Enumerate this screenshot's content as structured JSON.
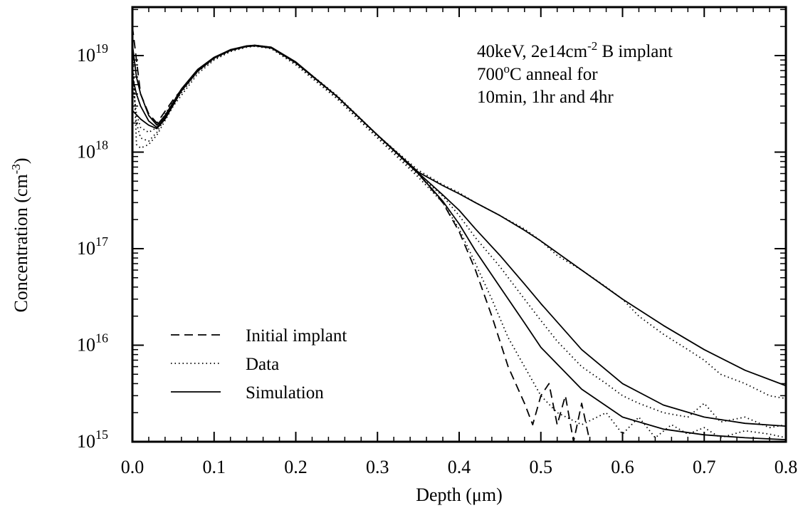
{
  "chart_data": {
    "type": "line",
    "title": "",
    "xlabel": "Depth (μm)",
    "ylabel": "Concentration (cm-3)",
    "xlim": [
      0.0,
      0.8
    ],
    "ylim": [
      1000000000000000.0,
      3e+19
    ],
    "yscale": "log",
    "grid": false,
    "legend_position": "bottom-left",
    "x_ticks": [
      "0.0",
      "0.1",
      "0.2",
      "0.3",
      "0.4",
      "0.5",
      "0.6",
      "0.7",
      "0.8"
    ],
    "y_ticks": [
      {
        "base": "10",
        "exp": "15",
        "value": 1000000000000000.0
      },
      {
        "base": "10",
        "exp": "16",
        "value": 1e+16
      },
      {
        "base": "10",
        "exp": "17",
        "value": 1e+17
      },
      {
        "base": "10",
        "exp": "18",
        "value": 1e+18
      },
      {
        "base": "10",
        "exp": "19",
        "value": 1e+19
      }
    ],
    "annotation": [
      {
        "parts": [
          {
            "t": "40keV, 2e14cm"
          },
          {
            "t": "-2",
            "sup": true
          },
          {
            "t": " B implant"
          }
        ]
      },
      {
        "parts": [
          {
            "t": "700"
          },
          {
            "t": "o",
            "sup": true
          },
          {
            "t": "C anneal for"
          }
        ]
      },
      {
        "parts": [
          {
            "t": "10min, 1hr and 4hr"
          }
        ]
      }
    ],
    "legend": [
      {
        "label": "Initial implant",
        "style": "dashed"
      },
      {
        "label": "Data",
        "style": "dotted"
      },
      {
        "label": "Simulation",
        "style": "solid"
      }
    ],
    "series": [
      {
        "role": "Initial implant",
        "style": "dashed",
        "x": [
          0.0,
          0.01,
          0.02,
          0.03,
          0.05,
          0.08,
          0.1,
          0.12,
          0.14,
          0.15,
          0.17,
          0.2,
          0.25,
          0.3,
          0.35,
          0.38,
          0.4,
          0.42,
          0.44,
          0.46,
          0.48,
          0.49,
          0.5,
          0.51,
          0.52,
          0.53,
          0.54,
          0.55,
          0.56
        ],
        "y": [
          2e+19,
          4e+18,
          2.5e+18,
          2e+18,
          3.5e+18,
          7e+18,
          9.5e+18,
          1.15e+19,
          1.25e+19,
          1.27e+19,
          1.2e+19,
          8.5e+18,
          3.8e+18,
          1.5e+18,
          6e+17,
          3e+17,
          1.5e+17,
          6e+16,
          2e+16,
          6000000000000000.0,
          2500000000000000.0,
          1500000000000000.0,
          3000000000000000.0,
          4000000000000000.0,
          1500000000000000.0,
          3000000000000000.0,
          1000000000000000.0,
          2500000000000000.0,
          1000000000000000.0
        ]
      },
      {
        "role": "Data (10min)",
        "style": "dotted",
        "x": [
          0.0,
          0.005,
          0.01,
          0.02,
          0.03,
          0.05,
          0.08,
          0.1,
          0.12,
          0.14,
          0.15,
          0.17,
          0.2,
          0.25,
          0.3,
          0.35,
          0.38,
          0.4,
          0.42,
          0.44,
          0.46,
          0.48,
          0.5,
          0.52,
          0.55,
          0.58,
          0.6,
          0.62,
          0.64,
          0.66,
          0.68,
          0.7,
          0.72,
          0.75,
          0.78,
          0.8
        ],
        "y": [
          1.5e+19,
          1.2e+18,
          1.1e+18,
          1.2e+18,
          1.5e+18,
          3e+18,
          6.5e+18,
          9e+18,
          1.1e+19,
          1.22e+19,
          1.25e+19,
          1.18e+19,
          8e+18,
          3.6e+18,
          1.4e+18,
          5.5e+17,
          3e+17,
          1.6e+17,
          7e+16,
          3e+16,
          1.2e+16,
          6000000000000000.0,
          3000000000000000.0,
          2000000000000000.0,
          1500000000000000.0,
          2000000000000000.0,
          1200000000000000.0,
          1800000000000000.0,
          1100000000000000.0,
          1500000000000000.0,
          1200000000000000.0,
          1400000000000000.0,
          1100000000000000.0,
          1300000000000000.0,
          1200000000000000.0,
          1100000000000000.0
        ]
      },
      {
        "role": "Data (1hr)",
        "style": "dotted",
        "x": [
          0.0,
          0.005,
          0.01,
          0.02,
          0.03,
          0.05,
          0.08,
          0.1,
          0.12,
          0.14,
          0.15,
          0.17,
          0.2,
          0.25,
          0.3,
          0.35,
          0.38,
          0.4,
          0.42,
          0.45,
          0.48,
          0.5,
          0.52,
          0.55,
          0.58,
          0.6,
          0.62,
          0.65,
          0.68,
          0.7,
          0.72,
          0.75,
          0.78,
          0.8
        ],
        "y": [
          8e+18,
          2e+18,
          1.4e+18,
          1.3e+18,
          1.6e+18,
          3.2e+18,
          6.8e+18,
          9.2e+18,
          1.12e+19,
          1.24e+19,
          1.26e+19,
          1.2e+19,
          8.2e+18,
          3.7e+18,
          1.45e+18,
          5.8e+17,
          3.5e+17,
          2.2e+17,
          1.3e+17,
          6.5e+16,
          3e+16,
          1.8e+16,
          1.1e+16,
          6000000000000000.0,
          4000000000000000.0,
          3000000000000000.0,
          2500000000000000.0,
          2000000000000000.0,
          1800000000000000.0,
          2500000000000000.0,
          1600000000000000.0,
          1800000000000000.0,
          1400000000000000.0,
          1500000000000000.0
        ]
      },
      {
        "role": "Data (4hr)",
        "style": "dotted",
        "x": [
          0.0,
          0.005,
          0.01,
          0.02,
          0.03,
          0.05,
          0.08,
          0.1,
          0.12,
          0.14,
          0.15,
          0.17,
          0.2,
          0.25,
          0.3,
          0.35,
          0.38,
          0.4,
          0.42,
          0.45,
          0.48,
          0.5,
          0.52,
          0.55,
          0.58,
          0.6,
          0.62,
          0.65,
          0.68,
          0.7,
          0.72,
          0.75,
          0.78,
          0.8
        ],
        "y": [
          5e+18,
          2.5e+18,
          1.8e+18,
          1.6e+18,
          1.8e+18,
          3.4e+18,
          7e+18,
          9.4e+18,
          1.14e+19,
          1.26e+19,
          1.28e+19,
          1.22e+19,
          8.5e+18,
          3.9e+18,
          1.5e+18,
          6.5e+17,
          4.6e+17,
          3.8e+17,
          3e+17,
          2.2e+17,
          1.6e+17,
          1.2e+17,
          8.5e+16,
          6e+16,
          4e+16,
          3e+16,
          2e+16,
          1.3e+16,
          9000000000000000.0,
          7000000000000000.0,
          5000000000000000.0,
          4000000000000000.0,
          3000000000000000.0,
          2800000000000000.0
        ]
      },
      {
        "role": "Simulation (10min)",
        "style": "solid",
        "x": [
          0.0,
          0.005,
          0.01,
          0.02,
          0.03,
          0.04,
          0.06,
          0.08,
          0.1,
          0.12,
          0.14,
          0.15,
          0.17,
          0.2,
          0.25,
          0.3,
          0.35,
          0.38,
          0.4,
          0.42,
          0.45,
          0.48,
          0.5,
          0.55,
          0.6,
          0.65,
          0.7,
          0.75,
          0.8
        ],
        "y": [
          1.3e+19,
          6e+18,
          4e+18,
          2.4e+18,
          1.9e+18,
          2.4e+18,
          4.5e+18,
          7.2e+18,
          9.6e+18,
          1.15e+19,
          1.26e+19,
          1.28e+19,
          1.22e+19,
          8.6e+18,
          3.8e+18,
          1.5e+18,
          6e+17,
          3.1e+17,
          1.8e+17,
          9.5e+16,
          4e+16,
          1.7e+16,
          9500000000000000.0,
          3500000000000000.0,
          1800000000000000.0,
          1350000000000000.0,
          1180000000000000.0,
          1100000000000000.0,
          1050000000000000.0
        ]
      },
      {
        "role": "Simulation (1hr)",
        "style": "solid",
        "x": [
          0.0,
          0.005,
          0.01,
          0.02,
          0.03,
          0.04,
          0.06,
          0.08,
          0.1,
          0.12,
          0.14,
          0.15,
          0.17,
          0.2,
          0.25,
          0.3,
          0.35,
          0.38,
          0.4,
          0.42,
          0.45,
          0.48,
          0.5,
          0.55,
          0.6,
          0.65,
          0.7,
          0.75,
          0.8
        ],
        "y": [
          6e+18,
          4e+18,
          3e+18,
          2.1e+18,
          1.8e+18,
          2.3e+18,
          4.4e+18,
          7e+18,
          9.5e+18,
          1.14e+19,
          1.25e+19,
          1.27e+19,
          1.21e+19,
          8.5e+18,
          3.8e+18,
          1.5e+18,
          6.1e+17,
          3.6e+17,
          2.5e+17,
          1.6e+17,
          8.5e+16,
          4.3e+16,
          2.7e+16,
          9000000000000000.0,
          4000000000000000.0,
          2400000000000000.0,
          1800000000000000.0,
          1550000000000000.0,
          1450000000000000.0
        ]
      },
      {
        "role": "Simulation (4hr)",
        "style": "solid",
        "x": [
          0.0,
          0.01,
          0.02,
          0.03,
          0.04,
          0.06,
          0.08,
          0.1,
          0.12,
          0.14,
          0.15,
          0.17,
          0.2,
          0.25,
          0.3,
          0.35,
          0.38,
          0.4,
          0.42,
          0.45,
          0.48,
          0.5,
          0.55,
          0.6,
          0.65,
          0.7,
          0.75,
          0.8
        ],
        "y": [
          2.7e+18,
          2.2e+18,
          1.9e+18,
          1.75e+18,
          2.2e+18,
          4.3e+18,
          6.9e+18,
          9.4e+18,
          1.13e+19,
          1.24e+19,
          1.26e+19,
          1.2e+19,
          8.4e+18,
          3.8e+18,
          1.5e+18,
          6.2e+17,
          4.5e+17,
          3.7e+17,
          3e+17,
          2.2e+17,
          1.55e+17,
          1.2e+17,
          6e+16,
          3e+16,
          1.6e+16,
          9000000000000000.0,
          5500000000000000.0,
          3800000000000000.0
        ]
      }
    ]
  }
}
